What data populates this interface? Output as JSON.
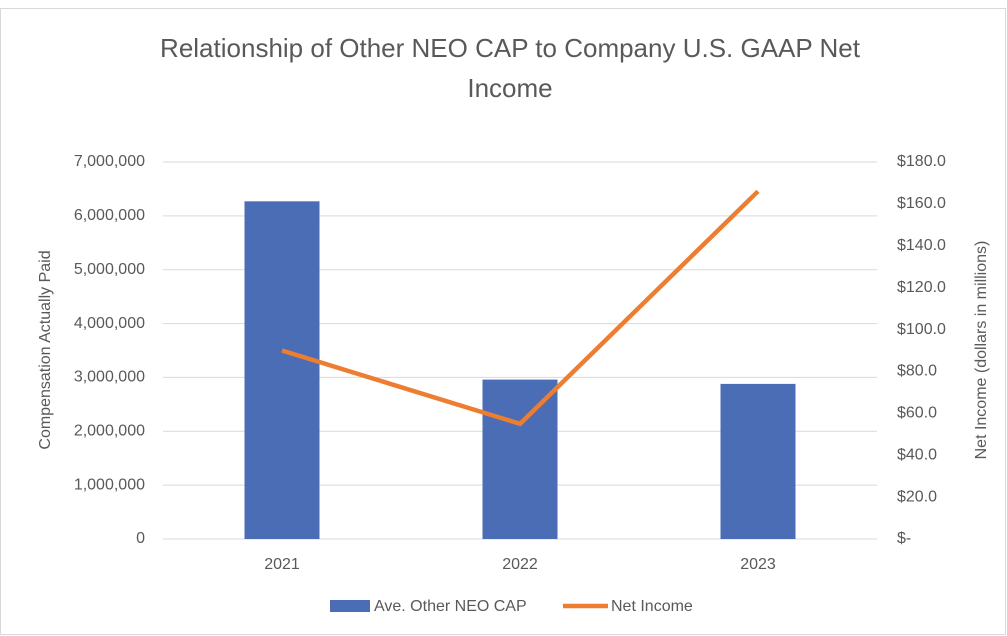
{
  "chart_data": {
    "type": "bar",
    "title": "Relationship of Other NEO CAP to Company U.S. GAAP Net Income",
    "y_label": "Compensation Actually Paid",
    "y2_label": "Net Income (dollars in millions)",
    "categories": [
      "2021",
      "2022",
      "2023"
    ],
    "series": [
      {
        "name": "Ave. Other NEO CAP",
        "color": "#4a6db5",
        "type": "bar",
        "axis": "y",
        "values": [
          6270000,
          2960000,
          2880000
        ]
      },
      {
        "name": "Net Income",
        "color": "#ed7d31",
        "type": "line",
        "axis": "y2",
        "values": [
          90,
          55,
          166
        ]
      }
    ],
    "ylim": [
      0,
      7000000
    ],
    "yticks": [
      {
        "value": 0,
        "label": "0"
      },
      {
        "value": 1000000,
        "label": "1,000,000"
      },
      {
        "value": 2000000,
        "label": "2,000,000"
      },
      {
        "value": 3000000,
        "label": "3,000,000"
      },
      {
        "value": 4000000,
        "label": "4,000,000"
      },
      {
        "value": 5000000,
        "label": "5,000,000"
      },
      {
        "value": 6000000,
        "label": "6,000,000"
      },
      {
        "value": 7000000,
        "label": "7,000,000"
      }
    ],
    "y2lim": [
      0,
      180
    ],
    "y2ticks": [
      {
        "value": 0,
        "label": "$-"
      },
      {
        "value": 20,
        "label": "$20.0"
      },
      {
        "value": 40,
        "label": "$40.0"
      },
      {
        "value": 60,
        "label": "$60.0"
      },
      {
        "value": 80,
        "label": "$80.0"
      },
      {
        "value": 100,
        "label": "$100.0"
      },
      {
        "value": 120,
        "label": "$120.0"
      },
      {
        "value": 140,
        "label": "$140.0"
      },
      {
        "value": 160,
        "label": "$160.0"
      },
      {
        "value": 180,
        "label": "$180.0"
      }
    ],
    "grid": true,
    "legend": "bottom"
  }
}
